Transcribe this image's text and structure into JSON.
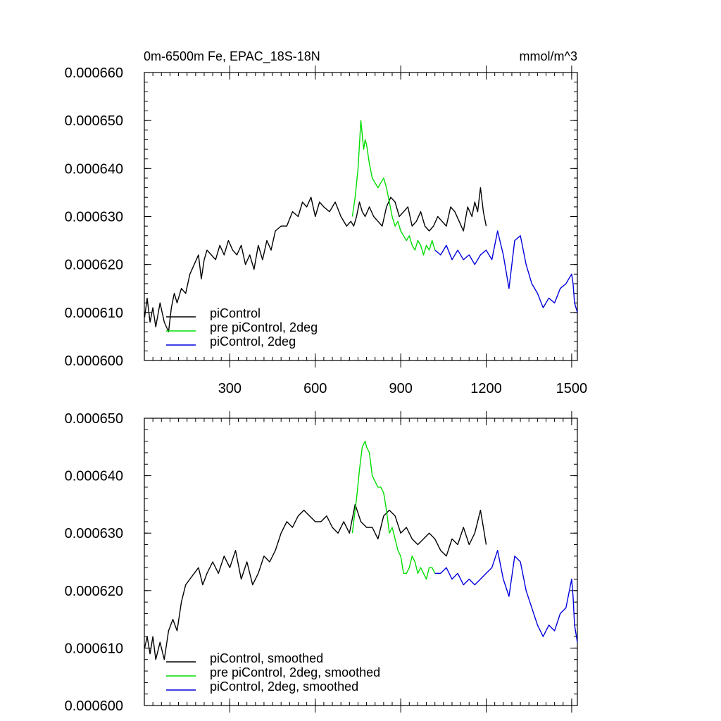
{
  "chart_data": [
    {
      "type": "line",
      "title": "0m-6500m Fe, EPAC_18S-18N",
      "units": "mmol/m^3",
      "xlabel": "",
      "ylabel": "",
      "xlim": [
        0,
        1520
      ],
      "ylim": [
        0.0006,
        0.00066
      ],
      "xticks": [
        300,
        600,
        900,
        1200,
        1500
      ],
      "xtick_labels": [
        "300",
        "600",
        "900",
        "1200",
        "1500"
      ],
      "yticks": [
        0.0006,
        0.00061,
        0.00062,
        0.00063,
        0.00064,
        0.00065,
        0.00066
      ],
      "ytick_labels": [
        "0.000600",
        "0.000610",
        "0.000620",
        "0.000630",
        "0.000640",
        "0.000650",
        "0.000660"
      ],
      "legend_position": "bottom-left",
      "series": [
        {
          "name": "piControl",
          "color": "#000000",
          "x": [
            1,
            10,
            20,
            30,
            40,
            55,
            70,
            85,
            95,
            105,
            115,
            130,
            145,
            160,
            175,
            190,
            200,
            210,
            220,
            235,
            250,
            265,
            280,
            295,
            310,
            325,
            340,
            355,
            370,
            385,
            400,
            415,
            430,
            445,
            460,
            480,
            500,
            520,
            540,
            555,
            570,
            585,
            600,
            615,
            630,
            650,
            670,
            690,
            710,
            725,
            735,
            745,
            755,
            765,
            775,
            790,
            805,
            820,
            835,
            850,
            865,
            880,
            895,
            910,
            925,
            940,
            955,
            970,
            985,
            1000,
            1015,
            1030,
            1045,
            1060,
            1075,
            1090,
            1105,
            1120,
            1135,
            1150,
            1160,
            1170,
            1180,
            1190,
            1200
          ],
          "y": [
            0.000609,
            0.000613,
            0.000608,
            0.000611,
            0.000607,
            0.000612,
            0.000608,
            0.000606,
            0.000611,
            0.000614,
            0.000612,
            0.000615,
            0.000614,
            0.000618,
            0.00062,
            0.000622,
            0.000617,
            0.000621,
            0.000623,
            0.000622,
            0.000621,
            0.000624,
            0.000622,
            0.000625,
            0.000623,
            0.000622,
            0.000624,
            0.00062,
            0.000622,
            0.000619,
            0.000624,
            0.000621,
            0.000625,
            0.000623,
            0.000627,
            0.000628,
            0.000628,
            0.000631,
            0.00063,
            0.000633,
            0.000632,
            0.000634,
            0.00063,
            0.000633,
            0.000632,
            0.000631,
            0.000633,
            0.00063,
            0.000628,
            0.000629,
            0.000628,
            0.00063,
            0.000633,
            0.000631,
            0.00063,
            0.000632,
            0.00063,
            0.000629,
            0.000628,
            0.000632,
            0.000634,
            0.000633,
            0.00063,
            0.000631,
            0.000632,
            0.000628,
            0.000629,
            0.000631,
            0.000628,
            0.000627,
            0.000628,
            0.00063,
            0.000629,
            0.000628,
            0.000632,
            0.000631,
            0.000629,
            0.000627,
            0.000632,
            0.00063,
            0.000633,
            0.000631,
            0.000636,
            0.000631,
            0.000628
          ]
        },
        {
          "name": "pre piControl, 2deg",
          "color": "#00dd00",
          "x": [
            730,
            740,
            750,
            755,
            760,
            765,
            770,
            775,
            780,
            785,
            790,
            800,
            810,
            820,
            830,
            840,
            850,
            860,
            870,
            880,
            890,
            900,
            910,
            920,
            930,
            940,
            950,
            960,
            970,
            980,
            990,
            1000,
            1010,
            1020
          ],
          "y": [
            0.00063,
            0.000634,
            0.00064,
            0.000645,
            0.00065,
            0.000647,
            0.000644,
            0.000646,
            0.000645,
            0.000643,
            0.000641,
            0.000638,
            0.000637,
            0.000636,
            0.000637,
            0.000638,
            0.000636,
            0.000633,
            0.00063,
            0.000628,
            0.000629,
            0.000627,
            0.000626,
            0.000625,
            0.000626,
            0.000624,
            0.000623,
            0.000625,
            0.000624,
            0.000622,
            0.000624,
            0.000623,
            0.000625,
            0.000623
          ]
        },
        {
          "name": "piControl, 2deg",
          "color": "#0000dd",
          "x": [
            1020,
            1040,
            1060,
            1080,
            1100,
            1120,
            1140,
            1160,
            1180,
            1200,
            1220,
            1240,
            1260,
            1280,
            1300,
            1320,
            1340,
            1360,
            1380,
            1400,
            1420,
            1440,
            1460,
            1480,
            1500,
            1505,
            1510,
            1520
          ],
          "y": [
            0.000623,
            0.000622,
            0.000624,
            0.000621,
            0.000623,
            0.000621,
            0.000622,
            0.00062,
            0.000622,
            0.000623,
            0.000621,
            0.000627,
            0.000622,
            0.000615,
            0.000625,
            0.000626,
            0.00062,
            0.000616,
            0.000614,
            0.000611,
            0.000613,
            0.000612,
            0.000615,
            0.000616,
            0.000618,
            0.000616,
            0.000612,
            0.00061
          ]
        }
      ]
    },
    {
      "type": "line",
      "title": "",
      "xlabel": "",
      "ylabel": "",
      "xlim": [
        0,
        1520
      ],
      "ylim": [
        0.0006,
        0.00065
      ],
      "xticks": [
        300,
        600,
        900,
        1200,
        1500
      ],
      "yticks": [
        0.0006,
        0.00061,
        0.00062,
        0.00063,
        0.00064,
        0.00065
      ],
      "ytick_labels": [
        "0.000600",
        "0.000610",
        "0.000620",
        "0.000630",
        "0.000640",
        "0.000650"
      ],
      "legend_position": "bottom-left",
      "series": [
        {
          "name": "piControl, smoothed",
          "color": "#000000",
          "x": [
            1,
            10,
            20,
            30,
            40,
            55,
            70,
            85,
            100,
            115,
            130,
            145,
            160,
            175,
            190,
            205,
            220,
            240,
            260,
            280,
            300,
            320,
            340,
            360,
            380,
            400,
            420,
            440,
            460,
            480,
            500,
            520,
            540,
            560,
            580,
            600,
            620,
            640,
            660,
            680,
            700,
            720,
            740,
            760,
            780,
            800,
            820,
            840,
            860,
            880,
            900,
            920,
            940,
            960,
            980,
            1000,
            1020,
            1040,
            1060,
            1080,
            1100,
            1120,
            1140,
            1160,
            1180,
            1190,
            1200
          ],
          "y": [
            0.00061,
            0.000612,
            0.000609,
            0.000612,
            0.000608,
            0.000611,
            0.000608,
            0.000613,
            0.000615,
            0.000613,
            0.000618,
            0.000621,
            0.000622,
            0.000623,
            0.000624,
            0.000621,
            0.000623,
            0.000625,
            0.000623,
            0.000626,
            0.000624,
            0.000627,
            0.000622,
            0.000625,
            0.000621,
            0.000623,
            0.000626,
            0.000625,
            0.000627,
            0.00063,
            0.000632,
            0.000631,
            0.000633,
            0.000634,
            0.000633,
            0.000632,
            0.000632,
            0.000633,
            0.000631,
            0.00063,
            0.000632,
            0.00063,
            0.000635,
            0.000632,
            0.000631,
            0.000631,
            0.000629,
            0.000633,
            0.000634,
            0.000633,
            0.00063,
            0.000631,
            0.000629,
            0.000628,
            0.000629,
            0.00063,
            0.000629,
            0.000627,
            0.000626,
            0.000629,
            0.000628,
            0.000631,
            0.000628,
            0.00063,
            0.000634,
            0.000631,
            0.000628
          ]
        },
        {
          "name": "pre piControl, 2deg, smoothed",
          "color": "#00dd00",
          "x": [
            730,
            745,
            755,
            765,
            775,
            780,
            790,
            800,
            810,
            820,
            830,
            840,
            850,
            860,
            870,
            880,
            890,
            900,
            910,
            920,
            930,
            940,
            950,
            960,
            970,
            980,
            990,
            1000,
            1010,
            1020
          ],
          "y": [
            0.00063,
            0.000636,
            0.000641,
            0.000645,
            0.000646,
            0.000645,
            0.000644,
            0.00064,
            0.000639,
            0.000638,
            0.000638,
            0.000637,
            0.000634,
            0.00063,
            0.000631,
            0.000629,
            0.000627,
            0.000626,
            0.000623,
            0.000623,
            0.000624,
            0.000626,
            0.000625,
            0.000623,
            0.000624,
            0.000623,
            0.000622,
            0.000624,
            0.000624,
            0.000623
          ]
        },
        {
          "name": "piControl, 2deg, smoothed",
          "color": "#0000dd",
          "x": [
            1020,
            1040,
            1060,
            1080,
            1100,
            1120,
            1140,
            1160,
            1180,
            1200,
            1220,
            1240,
            1260,
            1280,
            1300,
            1320,
            1340,
            1360,
            1380,
            1400,
            1420,
            1440,
            1460,
            1480,
            1500,
            1505,
            1510,
            1520
          ],
          "y": [
            0.000623,
            0.000623,
            0.000624,
            0.000622,
            0.000623,
            0.000621,
            0.000622,
            0.000621,
            0.000622,
            0.000623,
            0.000624,
            0.000627,
            0.000622,
            0.000619,
            0.000626,
            0.000625,
            0.00062,
            0.000617,
            0.000614,
            0.000612,
            0.000614,
            0.000613,
            0.000616,
            0.000617,
            0.000622,
            0.000619,
            0.000614,
            0.000611
          ]
        }
      ]
    }
  ]
}
